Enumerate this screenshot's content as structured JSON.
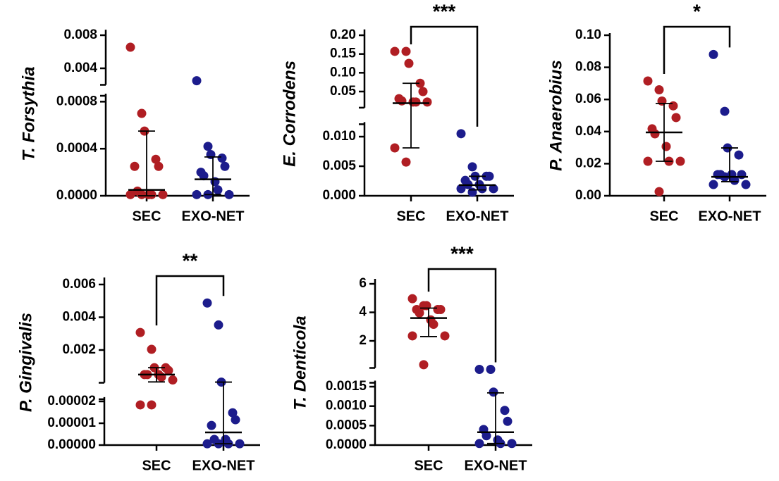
{
  "chart_data": [
    {
      "type": "dotplot",
      "ylabel": "T. Forsythia",
      "categories": [
        "SEC",
        "EXO-NET"
      ],
      "significance": null,
      "segments": [
        {
          "ylim": [
            0,
            0.00085
          ],
          "yticks": [
            {
              "value": 0,
              "label": "0.0000"
            },
            0.0004,
            0.0008
          ]
        },
        {
          "ylim": [
            0.002,
            0.0084
          ],
          "yticks": [
            0.004,
            0.008
          ]
        }
      ],
      "groups": [
        {
          "color": "#b01e23",
          "values": [
            0.00655,
            0.0007,
            0.00055,
            0.00031,
            0.00025,
            0.00025,
            4e-05,
            1e-05,
            1e-05,
            1e-05,
            1e-05,
            1e-05
          ],
          "median": 5e-05,
          "q1": 0,
          "q3": 0.00055
        },
        {
          "color": "#1c1c8c",
          "values": [
            0.0025,
            0.00042,
            0.00035,
            0.00032,
            0.00025,
            0.0002,
            0.00017,
            0.00012,
            5e-05,
            1e-05,
            1e-05,
            1e-05
          ],
          "median": 0.00014,
          "q1": 1e-05,
          "q3": 0.00033
        }
      ]
    },
    {
      "type": "dotplot",
      "ylabel": "E. Corrodens",
      "categories": [
        "SEC",
        "EXO-NET"
      ],
      "significance": "***",
      "segments": [
        {
          "ylim": [
            0,
            0.0121
          ],
          "yticks": [
            {
              "value": 0,
              "label": "0.000"
            },
            0.005,
            {
              "value": 0.01,
              "label": "0.010"
            }
          ]
        },
        {
          "ylim": [
            0.007,
            0.21
          ],
          "yticks": [
            0.05,
            {
              "value": 0.1,
              "label": "0.10"
            },
            0.15,
            {
              "value": 0.2,
              "label": "0.20"
            }
          ]
        }
      ],
      "groups": [
        {
          "color": "#b01e23",
          "values": [
            0.157,
            0.157,
            0.125,
            0.072,
            0.05,
            0.031,
            0.025,
            0.022,
            0.022,
            0.022,
            0.0081,
            0.0057
          ],
          "median": 0.019,
          "q1": 0.0081,
          "q3": 0.072
        },
        {
          "color": "#1c1c8c",
          "values": [
            0.0105,
            0.0049,
            0.0033,
            0.0033,
            0.0033,
            0.0026,
            0.0019,
            0.0019,
            0.0012,
            0.0012,
            0.0012,
            0.0006
          ],
          "median": 0.0018,
          "q1": 0.001,
          "q3": 0.0033
        }
      ]
    },
    {
      "type": "dotplot",
      "ylabel": "P. Anaerobius",
      "categories": [
        "SEC",
        "EXO-NET"
      ],
      "significance": "*",
      "segments": [
        {
          "ylim": [
            0,
            0.1
          ],
          "yticks": [
            {
              "value": 0,
              "label": "0.00"
            },
            0.02,
            0.04,
            0.06,
            0.08,
            {
              "value": 0.1,
              "label": "0.10"
            }
          ]
        }
      ],
      "groups": [
        {
          "color": "#b01e23",
          "values": [
            0.0715,
            0.066,
            0.059,
            0.056,
            0.0487,
            0.0417,
            0.0386,
            0.0307,
            0.0215,
            0.0215,
            0.0215,
            0.0026
          ],
          "median": 0.0395,
          "q1": 0.0215,
          "q3": 0.0575
        },
        {
          "color": "#1c1c8c",
          "values": [
            0.088,
            0.0526,
            0.0298,
            0.0254,
            0.0132,
            0.0132,
            0.0132,
            0.0132,
            0.0096,
            0.007,
            0.007,
            0.0118
          ],
          "median": 0.0118,
          "q1": 0.0088,
          "q3": 0.0298
        }
      ]
    },
    {
      "type": "dotplot",
      "ylabel": "P. Gingivalis",
      "categories": [
        "SEC",
        "EXO-NET"
      ],
      "significance": "**",
      "segments": [
        {
          "ylim": [
            0,
            2.1e-05
          ],
          "yticks": [
            {
              "value": 0,
              "label": "0.00000"
            },
            1e-05,
            2e-05
          ]
        },
        {
          "ylim": [
            0,
            0.0063
          ],
          "yticks": [
            0.002,
            0.004,
            0.006
          ]
        }
      ],
      "groups": [
        {
          "color": "#b01e23",
          "values": [
            0.00307,
            0.00204,
            0.00092,
            0.00092,
            0.00075,
            0.0005,
            0.0005,
            0.0005,
            0.00035,
            0.00017,
            1.84e-05,
            1.84e-05
          ],
          "median": 0.0005,
          "q1": 5e-05,
          "q3": 0.00092
        },
        {
          "color": "#1c1c8c",
          "values": [
            0.00487,
            0.00353,
            4e-05,
            1.48e-05,
            1.16e-05,
            9e-06,
            2.6e-06,
            2.6e-06,
            6e-07,
            6e-07,
            6e-07,
            6e-07
          ],
          "median": 5.8e-06,
          "q1": 6e-07,
          "q3": 4e-05
        }
      ]
    },
    {
      "type": "dotplot",
      "ylabel": "T. Denticola",
      "categories": [
        "SEC",
        "EXO-NET"
      ],
      "significance": "***",
      "segments": [
        {
          "ylim": [
            0,
            0.0016
          ],
          "yticks": [
            {
              "value": 0,
              "label": "0.0000"
            },
            0.0005,
            {
              "value": 0.001,
              "label": "0.0010"
            },
            0.0015
          ]
        },
        {
          "ylim": [
            0.1,
            6.2
          ],
          "yticks": [
            2,
            4,
            6
          ]
        }
      ],
      "groups": [
        {
          "color": "#b01e23",
          "values": [
            4.96,
            4.47,
            4.47,
            4.2,
            4.2,
            4.2,
            3.96,
            3.47,
            3.16,
            2.35,
            2.35,
            0.33
          ],
          "median": 3.6,
          "q1": 2.3,
          "q3": 4.3
        },
        {
          "color": "#1c1c8c",
          "values": [
            0.00197,
            0.00197,
            0.00136,
            0.00089,
            0.00061,
            0.0004,
            0.00024,
            0.00013,
            4e-05,
            4e-05,
            4e-05
          ],
          "median": 0.00033,
          "q1": 4e-05,
          "q3": 0.00134
        }
      ]
    }
  ]
}
